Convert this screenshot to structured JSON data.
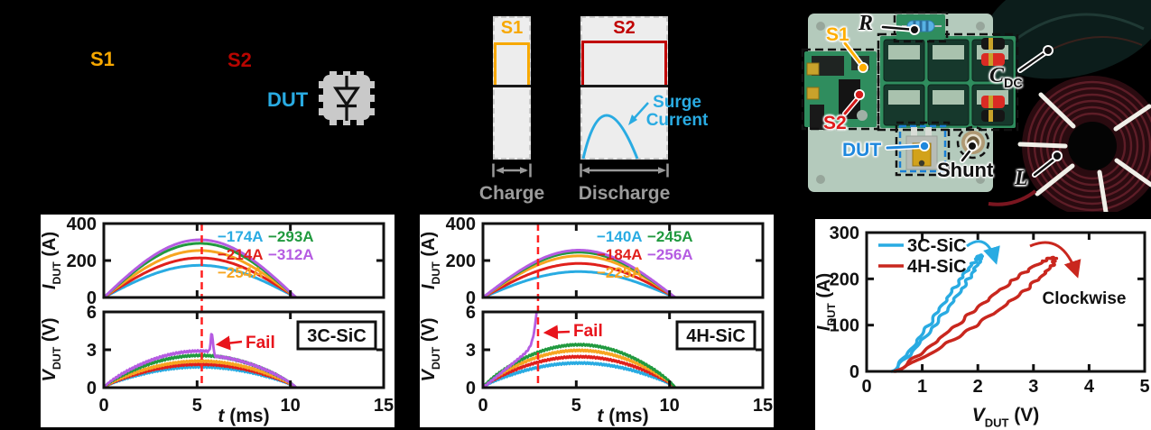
{
  "colors": {
    "blue": "#29ABE2",
    "red": "#E0201C",
    "orange": "#F7A521",
    "green": "#219A3F",
    "purple": "#B55CE2",
    "loop_red": "#C9271E",
    "cursor_red": "#FF2020",
    "fail_red": "#E8141C",
    "s1_orange": "#F7A800",
    "s2_dark_red": "#B70500",
    "dut_blue": "#29ABE2",
    "gray_text": "#9B9B9B",
    "chip_gray": "#C9C9C9"
  },
  "schematic": {
    "s1": "S1",
    "s2": "S2",
    "dut": "DUT"
  },
  "timing": {
    "s1": "S1",
    "s2": "S2",
    "surge_line1": "Surge",
    "surge_line2": "Current",
    "charge": "Charge",
    "discharge": "Discharge"
  },
  "photo": {
    "r": "R",
    "s1": "S1",
    "s2": "S2",
    "dut": "DUT",
    "shunt": "Shunt",
    "cdc_sym": "C",
    "cdc_sub": "DC",
    "l": "L"
  },
  "chart_data": [
    {
      "id": "surge-3c-sic",
      "type": "line",
      "title": "3C-SiC",
      "xlabel": "t (ms)",
      "xlim": [
        0,
        15
      ],
      "xticks": [
        0,
        5,
        10,
        15
      ],
      "cursor_ms": 5.25,
      "pulse_ms": 10.3,
      "panels": [
        {
          "ylabel": "I_DUT (A)",
          "ylim": [
            0,
            400
          ],
          "yticks": [
            0,
            200,
            400
          ],
          "series": [
            {
              "label": "−174A",
              "color_key": "blue",
              "peak_A": 174
            },
            {
              "label": "−214A",
              "color_key": "red",
              "peak_A": 214
            },
            {
              "label": "−254A",
              "color_key": "orange",
              "peak_A": 254
            },
            {
              "label": "−293A",
              "color_key": "green",
              "peak_A": 293
            },
            {
              "label": "−312A",
              "color_key": "purple",
              "peak_A": 312
            }
          ],
          "legend_columns": [
            [
              "−174A",
              "−214A",
              "−254A"
            ],
            [
              "−293A",
              "−312A"
            ]
          ]
        },
        {
          "ylabel": "V_DUT (V)",
          "ylim": [
            0,
            6
          ],
          "yticks": [
            0,
            3,
            6
          ],
          "series": [
            {
              "color_key": "blue",
              "peak_V": 1.65
            },
            {
              "color_key": "red",
              "peak_V": 1.85
            },
            {
              "color_key": "orange",
              "peak_V": 2.1
            },
            {
              "color_key": "green",
              "peak_V": 2.55
            },
            {
              "color_key": "purple",
              "peak_V": 2.9,
              "fail": {
                "type": "spike",
                "t_ms": 5.8,
                "spike_V": 4.5
              }
            }
          ],
          "fail_label": "Fail",
          "box_label": "3C-SiC"
        }
      ]
    },
    {
      "id": "surge-4h-sic",
      "type": "line",
      "title": "4H-SiC",
      "xlabel": "t (ms)",
      "xlim": [
        0,
        15
      ],
      "xticks": [
        0,
        5,
        10,
        15
      ],
      "cursor_ms": 2.95,
      "pulse_ms": 10.3,
      "panels": [
        {
          "ylabel": "I_DUT (A)",
          "ylim": [
            0,
            400
          ],
          "yticks": [
            0,
            200,
            400
          ],
          "series": [
            {
              "label": "−140A",
              "color_key": "blue",
              "peak_A": 140
            },
            {
              "label": "−184A",
              "color_key": "red",
              "peak_A": 184
            },
            {
              "label": "−225A",
              "color_key": "orange",
              "peak_A": 225
            },
            {
              "label": "−245A",
              "color_key": "green",
              "peak_A": 245
            },
            {
              "label": "−256A",
              "color_key": "purple",
              "peak_A": 256
            }
          ],
          "legend_columns": [
            [
              "−140A",
              "−184A",
              "−225A"
            ],
            [
              "−245A",
              "−256A"
            ]
          ]
        },
        {
          "ylabel": "V_DUT (V)",
          "ylim": [
            0,
            6
          ],
          "yticks": [
            0,
            3,
            6
          ],
          "series": [
            {
              "color_key": "blue",
              "peak_V": 1.95
            },
            {
              "color_key": "red",
              "peak_V": 2.45
            },
            {
              "color_key": "orange",
              "peak_V": 2.95
            },
            {
              "color_key": "green",
              "peak_V": 3.4
            },
            {
              "color_key": "purple",
              "peak_V": 6,
              "fail": {
                "type": "runaway",
                "t_ms": 2.9,
                "v_max": 6
              }
            }
          ],
          "fail_label": "Fail",
          "box_label": "4H-SiC"
        }
      ]
    },
    {
      "id": "iv-hysteresis-loops",
      "type": "line",
      "xlabel": "V_DUT (V)",
      "ylabel": "I_DUT (A)",
      "xlim": [
        0,
        5
      ],
      "xticks": [
        0,
        1,
        2,
        3,
        4,
        5
      ],
      "ylim": [
        0,
        300
      ],
      "yticks": [
        0,
        100,
        200,
        300
      ],
      "annotation": "Clockwise",
      "series": [
        {
          "label": "3C-SiC",
          "color_key": "blue",
          "v_peak": 2.05,
          "i_peak_A": 250,
          "v_start": 0.45,
          "hysteresis": 0.07
        },
        {
          "label": "4H-SiC",
          "color_key": "loop_red",
          "v_peak": 3.35,
          "i_peak_A": 245,
          "v_start": 0.5,
          "hysteresis": 0.13
        }
      ]
    }
  ]
}
